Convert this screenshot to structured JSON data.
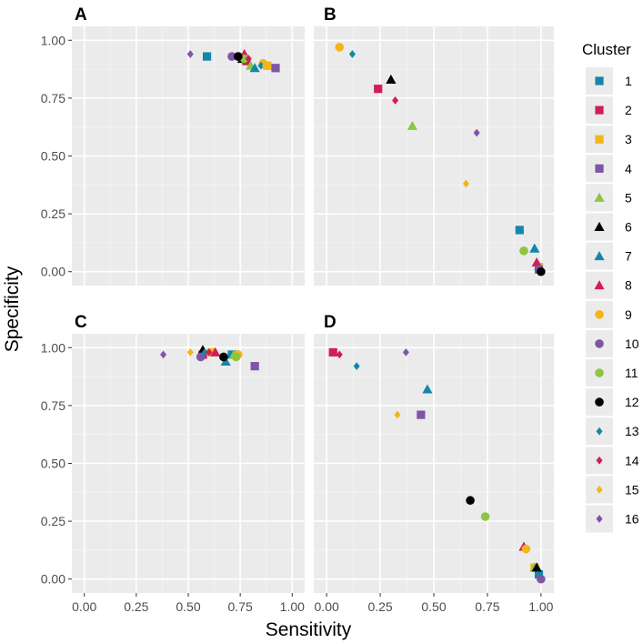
{
  "chart_data": {
    "type": "scatter",
    "title": "",
    "xlabel": "Sensitivity",
    "ylabel": "Specificity",
    "xlim": [
      -0.06,
      1.06
    ],
    "ylim": [
      -0.06,
      1.06
    ],
    "xticks": [
      "0.00",
      "0.25",
      "0.50",
      "0.75",
      "1.00"
    ],
    "yticks": [
      "0.00",
      "0.25",
      "0.50",
      "0.75",
      "1.00"
    ],
    "grid": true,
    "legend": {
      "title": "Cluster",
      "position": "right",
      "entries": [
        {
          "label": "1",
          "shape": "square",
          "color": "#1387AA"
        },
        {
          "label": "2",
          "shape": "square",
          "color": "#D01E58"
        },
        {
          "label": "3",
          "shape": "square",
          "color": "#F2B51B"
        },
        {
          "label": "4",
          "shape": "square",
          "color": "#7F55A8"
        },
        {
          "label": "5",
          "shape": "triangle",
          "color": "#8DC542"
        },
        {
          "label": "6",
          "shape": "triangle",
          "color": "#000000"
        },
        {
          "label": "7",
          "shape": "triangle",
          "color": "#1387AA"
        },
        {
          "label": "8",
          "shape": "triangle",
          "color": "#D01E58"
        },
        {
          "label": "9",
          "shape": "circle",
          "color": "#F2B51B"
        },
        {
          "label": "10",
          "shape": "circle",
          "color": "#7F55A8"
        },
        {
          "label": "11",
          "shape": "circle",
          "color": "#8DC542"
        },
        {
          "label": "12",
          "shape": "circle",
          "color": "#000000"
        },
        {
          "label": "13",
          "shape": "diamond",
          "color": "#1387AA"
        },
        {
          "label": "14",
          "shape": "diamond",
          "color": "#D01E58"
        },
        {
          "label": "15",
          "shape": "diamond",
          "color": "#F2B51B"
        },
        {
          "label": "16",
          "shape": "diamond",
          "color": "#7F55A8"
        }
      ]
    },
    "panels": [
      {
        "label": "A",
        "points": [
          {
            "cluster": "1",
            "x": 0.59,
            "y": 0.93
          },
          {
            "cluster": "2",
            "x": 0.78,
            "y": 0.91
          },
          {
            "cluster": "3",
            "x": 0.88,
            "y": 0.89
          },
          {
            "cluster": "4",
            "x": 0.92,
            "y": 0.88
          },
          {
            "cluster": "5",
            "x": 0.8,
            "y": 0.89
          },
          {
            "cluster": "6",
            "x": 0.76,
            "y": 0.92
          },
          {
            "cluster": "7",
            "x": 0.82,
            "y": 0.88
          },
          {
            "cluster": "8",
            "x": 0.77,
            "y": 0.94
          },
          {
            "cluster": "9",
            "x": 0.86,
            "y": 0.9
          },
          {
            "cluster": "10",
            "x": 0.71,
            "y": 0.93
          },
          {
            "cluster": "11",
            "x": 0.77,
            "y": 0.92
          },
          {
            "cluster": "12",
            "x": 0.74,
            "y": 0.93
          },
          {
            "cluster": "13",
            "x": 0.85,
            "y": 0.89
          },
          {
            "cluster": "14",
            "x": 0.79,
            "y": 0.92
          },
          {
            "cluster": "15",
            "x": 0.87,
            "y": 0.89
          },
          {
            "cluster": "16",
            "x": 0.51,
            "y": 0.94
          }
        ]
      },
      {
        "label": "B",
        "points": [
          {
            "cluster": "1",
            "x": 0.9,
            "y": 0.18
          },
          {
            "cluster": "2",
            "x": 0.24,
            "y": 0.79
          },
          {
            "cluster": "3",
            "x": 0.99,
            "y": 0.02
          },
          {
            "cluster": "4",
            "x": 0.99,
            "y": 0.01
          },
          {
            "cluster": "5",
            "x": 0.4,
            "y": 0.63
          },
          {
            "cluster": "6",
            "x": 0.3,
            "y": 0.83
          },
          {
            "cluster": "7",
            "x": 0.97,
            "y": 0.1
          },
          {
            "cluster": "8",
            "x": 0.98,
            "y": 0.04
          },
          {
            "cluster": "9",
            "x": 0.06,
            "y": 0.97
          },
          {
            "cluster": "10",
            "x": 0.99,
            "y": 0.01
          },
          {
            "cluster": "11",
            "x": 0.92,
            "y": 0.09
          },
          {
            "cluster": "12",
            "x": 1.0,
            "y": 0.0
          },
          {
            "cluster": "13",
            "x": 0.12,
            "y": 0.94
          },
          {
            "cluster": "14",
            "x": 0.32,
            "y": 0.74
          },
          {
            "cluster": "15",
            "x": 0.65,
            "y": 0.38
          },
          {
            "cluster": "16",
            "x": 0.7,
            "y": 0.6
          }
        ]
      },
      {
        "label": "C",
        "points": [
          {
            "cluster": "1",
            "x": 0.71,
            "y": 0.97
          },
          {
            "cluster": "2",
            "x": 0.57,
            "y": 0.97
          },
          {
            "cluster": "3",
            "x": 0.61,
            "y": 0.98
          },
          {
            "cluster": "4",
            "x": 0.82,
            "y": 0.92
          },
          {
            "cluster": "5",
            "x": 0.72,
            "y": 0.97
          },
          {
            "cluster": "6",
            "x": 0.57,
            "y": 0.99
          },
          {
            "cluster": "7",
            "x": 0.68,
            "y": 0.94
          },
          {
            "cluster": "8",
            "x": 0.63,
            "y": 0.98
          },
          {
            "cluster": "9",
            "x": 0.74,
            "y": 0.97
          },
          {
            "cluster": "10",
            "x": 0.56,
            "y": 0.96
          },
          {
            "cluster": "11",
            "x": 0.73,
            "y": 0.96
          },
          {
            "cluster": "12",
            "x": 0.67,
            "y": 0.96
          },
          {
            "cluster": "13",
            "x": 0.58,
            "y": 0.98
          },
          {
            "cluster": "14",
            "x": 0.6,
            "y": 0.98
          },
          {
            "cluster": "15",
            "x": 0.51,
            "y": 0.98
          },
          {
            "cluster": "16",
            "x": 0.38,
            "y": 0.97
          }
        ]
      },
      {
        "label": "D",
        "points": [
          {
            "cluster": "1",
            "x": 0.99,
            "y": 0.02
          },
          {
            "cluster": "2",
            "x": 0.03,
            "y": 0.98
          },
          {
            "cluster": "3",
            "x": 0.97,
            "y": 0.05
          },
          {
            "cluster": "4",
            "x": 0.44,
            "y": 0.71
          },
          {
            "cluster": "5",
            "x": 0.97,
            "y": 0.05
          },
          {
            "cluster": "6",
            "x": 0.98,
            "y": 0.05
          },
          {
            "cluster": "7",
            "x": 0.47,
            "y": 0.82
          },
          {
            "cluster": "8",
            "x": 0.92,
            "y": 0.14
          },
          {
            "cluster": "9",
            "x": 0.93,
            "y": 0.13
          },
          {
            "cluster": "10",
            "x": 1.0,
            "y": 0.0
          },
          {
            "cluster": "11",
            "x": 0.74,
            "y": 0.27
          },
          {
            "cluster": "12",
            "x": 0.67,
            "y": 0.34
          },
          {
            "cluster": "13",
            "x": 0.14,
            "y": 0.92
          },
          {
            "cluster": "14",
            "x": 0.06,
            "y": 0.97
          },
          {
            "cluster": "15",
            "x": 0.33,
            "y": 0.71
          },
          {
            "cluster": "16",
            "x": 0.37,
            "y": 0.98
          }
        ]
      }
    ]
  }
}
